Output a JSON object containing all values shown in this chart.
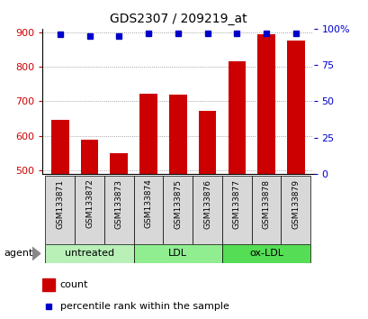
{
  "title": "GDS2307 / 209219_at",
  "samples": [
    "GSM133871",
    "GSM133872",
    "GSM133873",
    "GSM133874",
    "GSM133875",
    "GSM133876",
    "GSM133877",
    "GSM133878",
    "GSM133879"
  ],
  "counts": [
    645,
    588,
    550,
    722,
    718,
    672,
    815,
    893,
    875
  ],
  "percentiles": [
    96,
    95,
    95,
    97,
    97,
    97,
    97,
    97,
    97
  ],
  "ylim_left": [
    490,
    910
  ],
  "ylim_right": [
    0,
    100
  ],
  "yticks_left": [
    500,
    600,
    700,
    800,
    900
  ],
  "yticks_right": [
    0,
    25,
    50,
    75,
    100
  ],
  "groups": [
    {
      "label": "untreated",
      "indices": [
        0,
        1,
        2
      ],
      "color": "#b8f0b8"
    },
    {
      "label": "LDL",
      "indices": [
        3,
        4,
        5
      ],
      "color": "#90ee90"
    },
    {
      "label": "ox-LDL",
      "indices": [
        6,
        7,
        8
      ],
      "color": "#55dd55"
    }
  ],
  "bar_color": "#cc0000",
  "dot_color": "#0000cc",
  "bar_width": 0.6,
  "grid_color": "#888888",
  "agent_label": "agent",
  "legend_count_label": "count",
  "legend_percentile_label": "percentile rank within the sample",
  "left_tick_color": "#cc0000",
  "right_tick_color": "#0000cc",
  "bg_color": "#d8d8d8"
}
